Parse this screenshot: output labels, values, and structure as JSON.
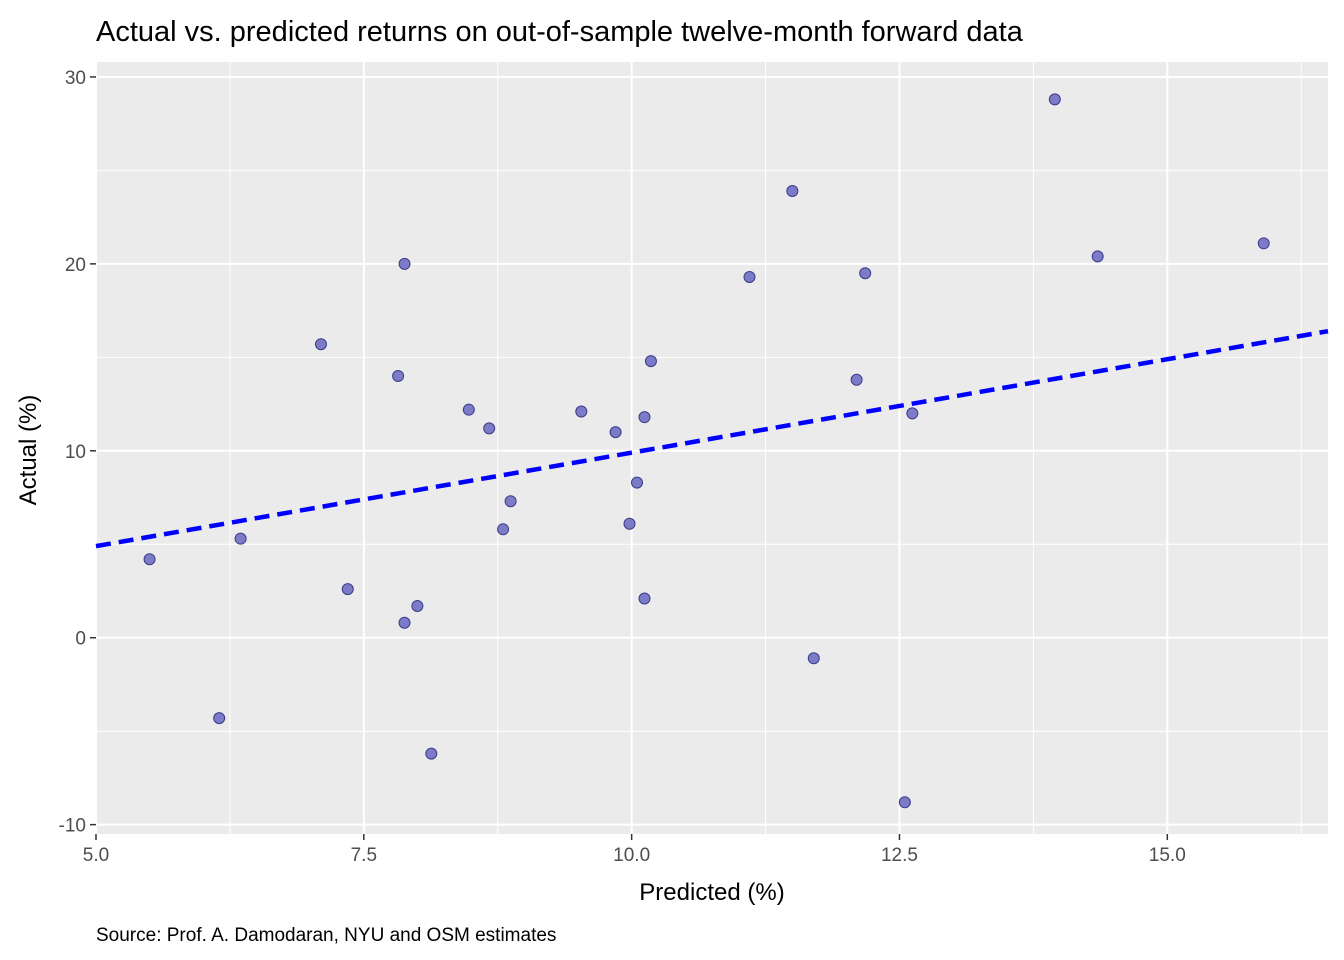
{
  "chart_data": {
    "type": "scatter",
    "title": "Actual vs. predicted returns on out-of-sample twelve-month forward data",
    "xlabel": "Predicted (%)",
    "ylabel": "Actual (%)",
    "caption": "Source: Prof. A. Damodaran, NYU and OSM estimates",
    "xlim": [
      5.0,
      16.5
    ],
    "ylim": [
      -10.5,
      30.8
    ],
    "x_ticks": [
      {
        "value": 5.0,
        "label": "5.0"
      },
      {
        "value": 7.5,
        "label": "7.5"
      },
      {
        "value": 10.0,
        "label": "10.0"
      },
      {
        "value": 12.5,
        "label": "12.5"
      },
      {
        "value": 15.0,
        "label": "15.0"
      }
    ],
    "y_ticks": [
      {
        "value": -10,
        "label": "-10"
      },
      {
        "value": 0,
        "label": "0"
      },
      {
        "value": 10,
        "label": "10"
      },
      {
        "value": 20,
        "label": "20"
      },
      {
        "value": 30,
        "label": "30"
      }
    ],
    "grid": true,
    "colors": {
      "panel": "#ebebeb",
      "grid": "#ffffff",
      "point_fill": "#7b7bc8",
      "point_stroke": "#3b3b8a",
      "fit_line": "#0000ff"
    },
    "points": [
      {
        "x": 5.5,
        "y": 4.2
      },
      {
        "x": 6.15,
        "y": -4.3
      },
      {
        "x": 6.35,
        "y": 5.3
      },
      {
        "x": 7.1,
        "y": 15.7
      },
      {
        "x": 7.35,
        "y": 2.6
      },
      {
        "x": 7.82,
        "y": 14.0
      },
      {
        "x": 7.88,
        "y": 20.0
      },
      {
        "x": 7.88,
        "y": 0.8
      },
      {
        "x": 8.0,
        "y": 1.7
      },
      {
        "x": 8.13,
        "y": -6.2
      },
      {
        "x": 8.48,
        "y": 12.2
      },
      {
        "x": 8.67,
        "y": 11.2
      },
      {
        "x": 8.8,
        "y": 5.8
      },
      {
        "x": 8.87,
        "y": 7.3
      },
      {
        "x": 9.53,
        "y": 12.1
      },
      {
        "x": 9.85,
        "y": 11.0
      },
      {
        "x": 9.98,
        "y": 6.1
      },
      {
        "x": 10.05,
        "y": 8.3
      },
      {
        "x": 10.12,
        "y": 11.8
      },
      {
        "x": 10.12,
        "y": 2.1
      },
      {
        "x": 10.18,
        "y": 14.8
      },
      {
        "x": 11.1,
        "y": 19.3
      },
      {
        "x": 11.5,
        "y": 23.9
      },
      {
        "x": 11.7,
        "y": -1.1
      },
      {
        "x": 12.1,
        "y": 13.8
      },
      {
        "x": 12.18,
        "y": 19.5
      },
      {
        "x": 12.55,
        "y": -8.8
      },
      {
        "x": 12.62,
        "y": 12.0
      },
      {
        "x": 13.95,
        "y": 28.8
      },
      {
        "x": 14.35,
        "y": 20.4
      },
      {
        "x": 15.9,
        "y": 21.1
      }
    ],
    "fit_line": {
      "style": "dashed",
      "x": [
        5.0,
        16.5
      ],
      "y": [
        4.9,
        16.4
      ]
    }
  }
}
